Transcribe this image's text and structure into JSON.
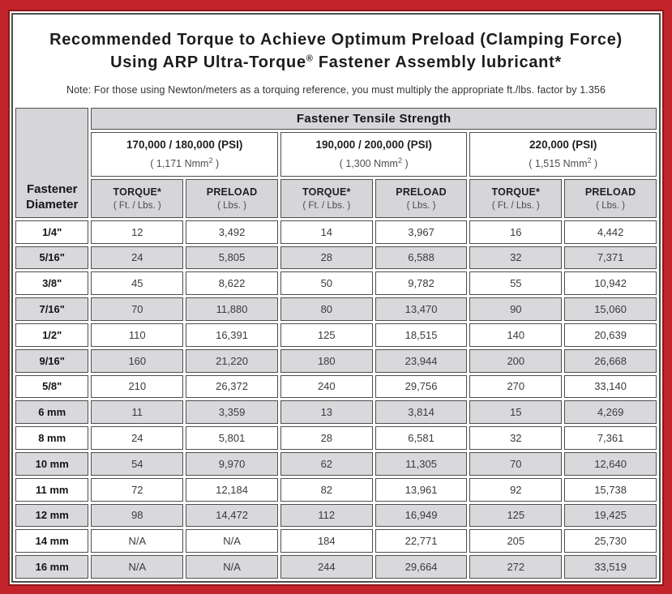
{
  "page": {
    "title_line1": "Recommended Torque to Achieve Optimum Preload (Clamping Force)",
    "title_line2_before": "Using ARP Ultra-Torque",
    "title_line2_sup": "®",
    "title_line2_after": " Fastener Assembly lubricant*",
    "note": "Note: For those using Newton/meters as a torquing reference, you must multiply the appropriate ft./lbs. factor by 1.356"
  },
  "table": {
    "corner_header_line1": "Fastener",
    "corner_header_line2": "Diameter",
    "tensile_strength_header": "Fastener Tensile Strength",
    "groups": [
      {
        "psi": "170,000 / 180,000 (PSI)",
        "nmm_before": "( 1,171 Nmm",
        "nmm_sup": "2",
        "nmm_after": " )"
      },
      {
        "psi": "190,000 / 200,000 (PSI)",
        "nmm_before": "( 1,300 Nmm",
        "nmm_sup": "2",
        "nmm_after": " )"
      },
      {
        "psi": "220,000 (PSI)",
        "nmm_before": "( 1,515 Nmm",
        "nmm_sup": "2",
        "nmm_after": " )"
      }
    ],
    "column_headers": {
      "torque_label": "TORQUE*",
      "torque_unit": "( Ft. / Lbs. )",
      "preload_label": "PRELOAD",
      "preload_unit": "( Lbs. )"
    },
    "rows": [
      {
        "diameter": "1/4\"",
        "values": [
          "12",
          "3,492",
          "14",
          "3,967",
          "16",
          "4,442"
        ]
      },
      {
        "diameter": "5/16\"",
        "values": [
          "24",
          "5,805",
          "28",
          "6,588",
          "32",
          "7,371"
        ]
      },
      {
        "diameter": "3/8\"",
        "values": [
          "45",
          "8,622",
          "50",
          "9,782",
          "55",
          "10,942"
        ]
      },
      {
        "diameter": "7/16\"",
        "values": [
          "70",
          "11,880",
          "80",
          "13,470",
          "90",
          "15,060"
        ]
      },
      {
        "diameter": "1/2\"",
        "values": [
          "110",
          "16,391",
          "125",
          "18,515",
          "140",
          "20,639"
        ]
      },
      {
        "diameter": "9/16\"",
        "values": [
          "160",
          "21,220",
          "180",
          "23,944",
          "200",
          "26,668"
        ]
      },
      {
        "diameter": "5/8\"",
        "values": [
          "210",
          "26,372",
          "240",
          "29,756",
          "270",
          "33,140"
        ]
      },
      {
        "diameter": "6 mm",
        "values": [
          "11",
          "3,359",
          "13",
          "3,814",
          "15",
          "4,269"
        ]
      },
      {
        "diameter": "8 mm",
        "values": [
          "24",
          "5,801",
          "28",
          "6,581",
          "32",
          "7,361"
        ]
      },
      {
        "diameter": "10 mm",
        "values": [
          "54",
          "9,970",
          "62",
          "11,305",
          "70",
          "12,640"
        ]
      },
      {
        "diameter": "11 mm",
        "values": [
          "72",
          "12,184",
          "82",
          "13,961",
          "92",
          "15,738"
        ]
      },
      {
        "diameter": "12 mm",
        "values": [
          "98",
          "14,472",
          "112",
          "16,949",
          "125",
          "19,425"
        ]
      },
      {
        "diameter": "14 mm",
        "values": [
          "N/A",
          "N/A",
          "184",
          "22,771",
          "205",
          "25,730"
        ]
      },
      {
        "diameter": "16 mm",
        "values": [
          "N/A",
          "N/A",
          "244",
          "29,664",
          "272",
          "33,519"
        ]
      }
    ]
  },
  "colors": {
    "frame_red": "#c3242b",
    "frame_red_dark": "#8e161c",
    "cell_border": "#4e4e50",
    "stripe_gray": "#d9d9db",
    "header_gray": "#d6d6d8"
  }
}
